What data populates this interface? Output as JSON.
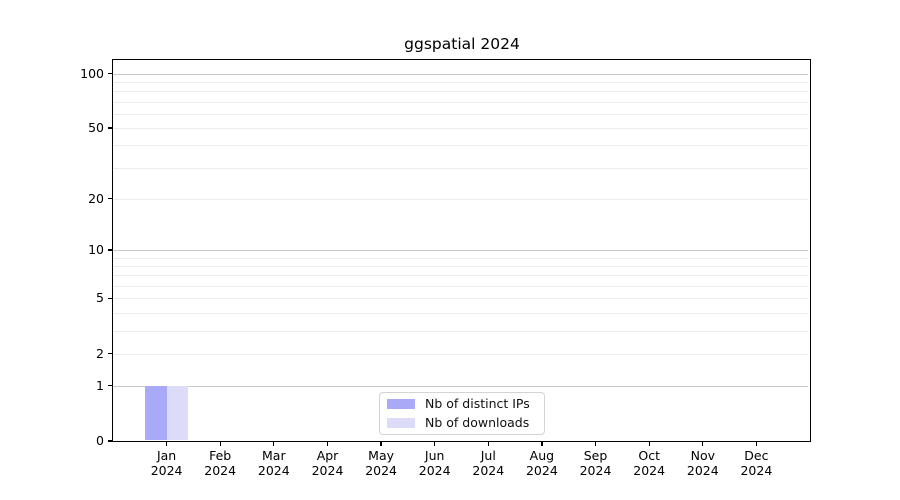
{
  "chart_data": {
    "type": "bar",
    "title": "ggspatial 2024",
    "categories": [
      "Jan",
      "Feb",
      "Mar",
      "Apr",
      "May",
      "Jun",
      "Jul",
      "Aug",
      "Sep",
      "Oct",
      "Nov",
      "Dec"
    ],
    "category_year": "2024",
    "series": [
      {
        "name": "Nb of distinct IPs",
        "color": "#a9a9f7",
        "values": [
          1,
          0,
          0,
          0,
          0,
          0,
          0,
          0,
          0,
          0,
          0,
          0
        ]
      },
      {
        "name": "Nb of downloads",
        "color": "#dcdcf8",
        "values": [
          1,
          0,
          0,
          0,
          0,
          0,
          0,
          0,
          0,
          0,
          0,
          0
        ]
      }
    ],
    "xlabel": "",
    "ylabel": "",
    "y_scale": "log1p",
    "y_ticks": [
      0,
      1,
      2,
      5,
      10,
      20,
      50,
      100
    ],
    "y_major_gridlines": [
      1,
      10,
      100
    ],
    "y_minor_gridlines": [
      2,
      3,
      4,
      5,
      6,
      7,
      8,
      9,
      20,
      30,
      40,
      50,
      60,
      70,
      80,
      90
    ],
    "ylim": [
      0,
      118
    ],
    "grid": "horizontal",
    "legend_position": "lower center"
  },
  "colors": {
    "background": "#ffffff",
    "axis": "#000000",
    "text": "#000000",
    "major_grid": "#c9c9c9",
    "minor_grid": "#ececec",
    "legend_border": "#d3d3d3"
  }
}
